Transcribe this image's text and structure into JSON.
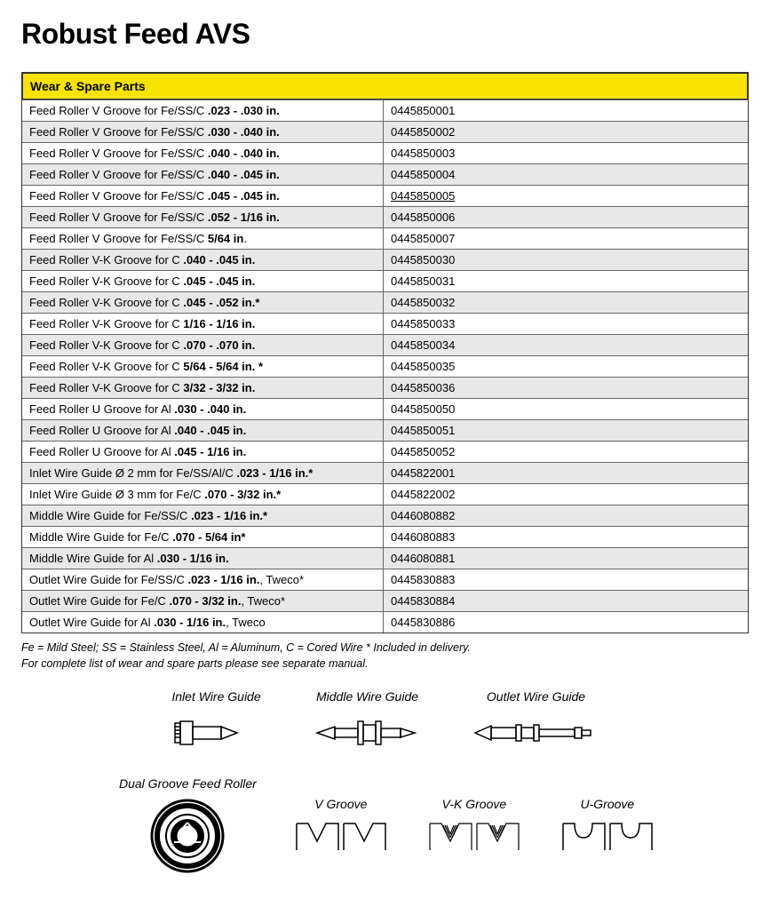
{
  "title": "Robust Feed AVS",
  "table": {
    "header": "Wear & Spare Parts",
    "rows": [
      {
        "desc_prefix": "Feed Roller V Groove for Fe/SS/C ",
        "desc_bold": ".023 - .030 in.",
        "desc_suffix": "",
        "part": "0445850001",
        "alt": false,
        "highlight": false
      },
      {
        "desc_prefix": "Feed Roller V Groove for Fe/SS/C ",
        "desc_bold": ".030 - .040 in.",
        "desc_suffix": "",
        "part": "0445850002",
        "alt": true,
        "highlight": false
      },
      {
        "desc_prefix": "Feed Roller V Groove for Fe/SS/C ",
        "desc_bold": ".040 - .040 in.",
        "desc_suffix": "",
        "part": "0445850003",
        "alt": false,
        "highlight": false
      },
      {
        "desc_prefix": "Feed Roller V Groove for Fe/SS/C ",
        "desc_bold": ".040 - .045 in.",
        "desc_suffix": "",
        "part": "0445850004",
        "alt": true,
        "highlight": false
      },
      {
        "desc_prefix": "Feed Roller V Groove for Fe/SS/C ",
        "desc_bold": ".045 - .045 in.",
        "desc_suffix": "",
        "part": "0445850005",
        "alt": false,
        "highlight": true
      },
      {
        "desc_prefix": "Feed Roller V Groove for Fe/SS/C ",
        "desc_bold": ".052 - 1/16 in.",
        "desc_suffix": "",
        "part": "0445850006",
        "alt": true,
        "highlight": false
      },
      {
        "desc_prefix": "Feed Roller V Groove for Fe/SS/C ",
        "desc_bold": "5/64 in",
        "desc_suffix": ".",
        "part": "0445850007",
        "alt": false,
        "highlight": false
      },
      {
        "desc_prefix": "Feed Roller V-K Groove for C ",
        "desc_bold": ".040 - .045 in.",
        "desc_suffix": "",
        "part": "0445850030",
        "alt": true,
        "highlight": false
      },
      {
        "desc_prefix": "Feed Roller V-K Groove for C ",
        "desc_bold": ".045 - .045 in.",
        "desc_suffix": "",
        "part": "0445850031",
        "alt": false,
        "highlight": false
      },
      {
        "desc_prefix": "Feed Roller V-K Groove for C ",
        "desc_bold": ".045 - .052 in.*",
        "desc_suffix": "",
        "part": "0445850032",
        "alt": true,
        "highlight": false
      },
      {
        "desc_prefix": "Feed Roller V-K Groove for C ",
        "desc_bold": "1/16 - 1/16 in.",
        "desc_suffix": "",
        "part": "0445850033",
        "alt": false,
        "highlight": false
      },
      {
        "desc_prefix": "Feed Roller V-K Groove for C  ",
        "desc_bold": ".070 - .070 in.",
        "desc_suffix": "",
        "part": "0445850034",
        "alt": true,
        "highlight": false
      },
      {
        "desc_prefix": "Feed Roller V-K Groove for C ",
        "desc_bold": "5/64 - 5/64 in. *",
        "desc_suffix": "",
        "part": "0445850035",
        "alt": false,
        "highlight": false
      },
      {
        "desc_prefix": "Feed Roller V-K Groove for C ",
        "desc_bold": "3/32 - 3/32 in.",
        "desc_suffix": "",
        "part": "0445850036",
        "alt": true,
        "highlight": false
      },
      {
        "desc_prefix": "Feed Roller U Groove for Al ",
        "desc_bold": ".030 - .040 in.",
        "desc_suffix": "",
        "part": "0445850050",
        "alt": false,
        "highlight": false
      },
      {
        "desc_prefix": "Feed Roller U Groove for Al ",
        "desc_bold": ".040 - .045 in.",
        "desc_suffix": "",
        "part": "0445850051",
        "alt": true,
        "highlight": false
      },
      {
        "desc_prefix": "Feed Roller U Groove for Al ",
        "desc_bold": ".045 - 1/16 in.",
        "desc_suffix": "",
        "part": "0445850052",
        "alt": false,
        "highlight": false
      },
      {
        "desc_prefix": "Inlet Wire Guide Ø 2 mm for Fe/SS/Al/C ",
        "desc_bold": ".023 - 1/16 in.*",
        "desc_suffix": "",
        "part": "0445822001",
        "alt": true,
        "highlight": false
      },
      {
        "desc_prefix": "Inlet Wire Guide Ø 3 mm for Fe/C ",
        "desc_bold": ".070 - 3/32 in.*",
        "desc_suffix": "",
        "part": "0445822002",
        "alt": false,
        "highlight": false
      },
      {
        "desc_prefix": "Middle Wire Guide for Fe/SS/C ",
        "desc_bold": ".023 - 1/16 in.*",
        "desc_suffix": "",
        "part": "0446080882",
        "alt": true,
        "highlight": false
      },
      {
        "desc_prefix": "Middle Wire Guide for Fe/C ",
        "desc_bold": ".070 - 5/64 in*",
        "desc_suffix": "",
        "part": "0446080883",
        "alt": false,
        "highlight": false
      },
      {
        "desc_prefix": "Middle Wire Guide for Al ",
        "desc_bold": ".030 - 1/16 in.",
        "desc_suffix": "",
        "part": "0446080881",
        "alt": true,
        "highlight": false
      },
      {
        "desc_prefix": "Outlet Wire Guide for Fe/SS/C ",
        "desc_bold": ".023 - 1/16 in.",
        "desc_suffix": ", Tweco*",
        "part": "0445830883",
        "alt": false,
        "highlight": false
      },
      {
        "desc_prefix": "Outlet Wire Guide for Fe/C ",
        "desc_bold": ".070 - 3/32 in.",
        "desc_suffix": ", Tweco*",
        "part": "0445830884",
        "alt": true,
        "highlight": false
      },
      {
        "desc_prefix": "Outlet Wire Guide for Al ",
        "desc_bold": ".030 - 1/16 in.",
        "desc_suffix": ", Tweco",
        "part": "0445830886",
        "alt": false,
        "highlight": false
      }
    ]
  },
  "footnote_line1": "Fe = Mild Steel;   SS = Stainless Steel,   Al = Aluminum,   C = Cored Wire   * Included in delivery.",
  "footnote_line2": "For complete list of wear and spare parts please see separate manual.",
  "diagrams": {
    "inlet": "Inlet Wire Guide",
    "middle": "Middle Wire Guide",
    "outlet": "Outlet Wire Guide",
    "dual": "Dual Groove Feed Roller",
    "v": "V Groove",
    "vk": "V-K Groove",
    "u": "U-Groove"
  },
  "colors": {
    "header_bg": "#f8e400",
    "alt_row_bg": "#e8e8e8",
    "border": "#666666",
    "text": "#000000"
  }
}
